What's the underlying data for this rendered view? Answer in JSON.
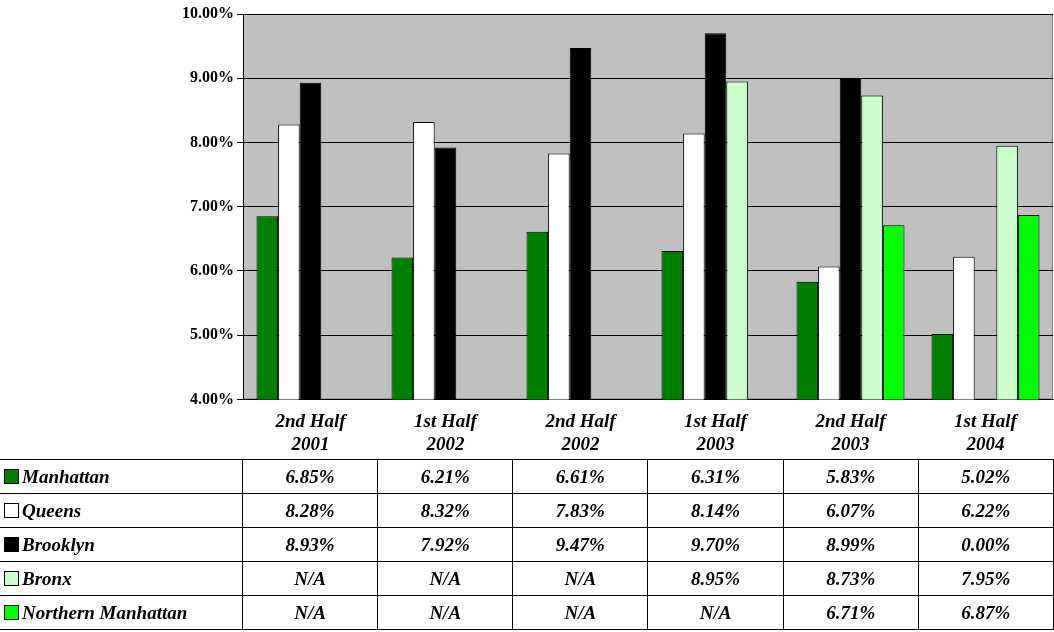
{
  "chart_data": {
    "type": "bar",
    "categories": [
      "2nd Half\n2001",
      "1st Half\n2002",
      "2nd Half\n2002",
      "1st Half\n2003",
      "2nd Half\n2003",
      "1st Half\n2004"
    ],
    "series": [
      {
        "name": "Manhattan",
        "color": "#008000",
        "values": [
          6.85,
          6.21,
          6.61,
          6.31,
          5.83,
          5.02
        ],
        "value_labels": [
          "6.85%",
          "6.21%",
          "6.61%",
          "6.31%",
          "5.83%",
          "5.02%"
        ]
      },
      {
        "name": "Queens",
        "color": "#ffffff",
        "values": [
          8.28,
          8.32,
          7.83,
          8.14,
          6.07,
          6.22
        ],
        "value_labels": [
          "8.28%",
          "8.32%",
          "7.83%",
          "8.14%",
          "6.07%",
          "6.22%"
        ]
      },
      {
        "name": "Brooklyn",
        "color": "#000000",
        "values": [
          8.93,
          7.92,
          9.47,
          9.7,
          8.99,
          null
        ],
        "value_labels": [
          "8.93%",
          "7.92%",
          "9.47%",
          "9.70%",
          "8.99%",
          "0.00%"
        ]
      },
      {
        "name": "Bronx",
        "color": "#ccffcc",
        "values": [
          null,
          null,
          null,
          8.95,
          8.73,
          7.95
        ],
        "value_labels": [
          "N/A",
          "N/A",
          "N/A",
          "8.95%",
          "8.73%",
          "7.95%"
        ]
      },
      {
        "name": "Northern Manhattan",
        "color": "#00ff00",
        "values": [
          null,
          null,
          null,
          null,
          6.71,
          6.87
        ],
        "value_labels": [
          "N/A",
          "N/A",
          "N/A",
          "N/A",
          "6.71%",
          "6.87%"
        ]
      }
    ],
    "ylim": [
      4,
      10
    ],
    "yticks": [
      {
        "value": 4,
        "label": "4.00%"
      },
      {
        "value": 5,
        "label": "5.00%"
      },
      {
        "value": 6,
        "label": "6.00%"
      },
      {
        "value": 7,
        "label": "7.00%"
      },
      {
        "value": 8,
        "label": "8.00%"
      },
      {
        "value": 9,
        "label": "9.00%"
      },
      {
        "value": 10,
        "label": "10.00%"
      }
    ],
    "grid": "y",
    "legend": "left"
  }
}
